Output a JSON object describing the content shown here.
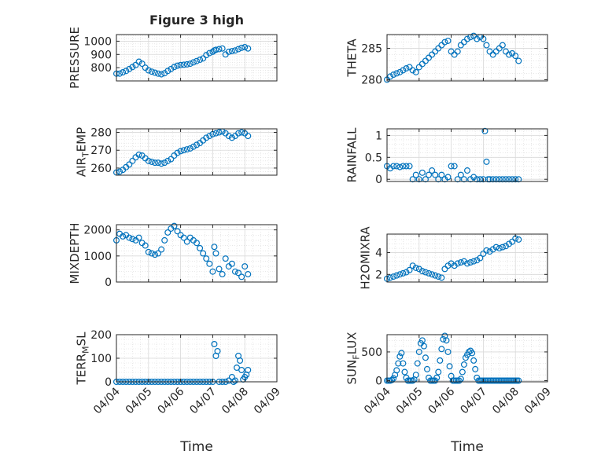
{
  "title": "Figure 3 high",
  "x_ticks": [
    "04/04",
    "04/05",
    "04/06",
    "04/07",
    "04/08",
    "04/09"
  ],
  "x_label": "Time",
  "colors": {
    "marker": "#0072bd",
    "grid": "#d9d9d9",
    "axis": "#262626"
  },
  "chart_data": [
    {
      "type": "scatter",
      "ylabel": "PRESSURE",
      "ylim": [
        700,
        1050
      ],
      "yticks": [
        "800",
        "900",
        "1000"
      ],
      "grid": true,
      "series": [
        {
          "x": [
            0,
            0.1,
            0.2,
            0.3,
            0.4,
            0.5,
            0.6,
            0.7,
            0.8,
            0.9,
            1.0,
            1.1,
            1.2,
            1.3,
            1.4,
            1.5,
            1.6,
            1.7,
            1.8,
            1.9,
            2.0,
            2.1,
            2.2,
            2.3,
            2.4,
            2.5,
            2.6,
            2.7,
            2.8,
            2.9,
            3.0,
            3.05,
            3.1,
            3.2,
            3.3,
            3.4,
            3.5,
            3.6,
            3.7,
            3.8,
            3.9,
            4.0,
            4.1
          ],
          "y": [
            755,
            755,
            765,
            775,
            790,
            805,
            820,
            845,
            830,
            800,
            780,
            770,
            762,
            755,
            750,
            758,
            775,
            790,
            805,
            815,
            820,
            822,
            825,
            830,
            840,
            850,
            860,
            870,
            895,
            910,
            920,
            930,
            935,
            940,
            945,
            900,
            920,
            925,
            930,
            940,
            950,
            955,
            945
          ]
        }
      ]
    },
    {
      "type": "scatter",
      "ylabel": "AIR_TEMP",
      "ylim": [
        256,
        282
      ],
      "yticks": [
        "260",
        "270",
        "280"
      ],
      "grid": true,
      "series": [
        {
          "x": [
            0,
            0.1,
            0.2,
            0.3,
            0.4,
            0.5,
            0.6,
            0.7,
            0.8,
            0.9,
            1.0,
            1.1,
            1.2,
            1.3,
            1.4,
            1.5,
            1.6,
            1.7,
            1.8,
            1.9,
            2.0,
            2.1,
            2.2,
            2.3,
            2.4,
            2.5,
            2.6,
            2.7,
            2.8,
            2.9,
            3.0,
            3.1,
            3.2,
            3.3,
            3.4,
            3.5,
            3.6,
            3.7,
            3.8,
            3.9,
            4.0,
            4.1
          ],
          "y": [
            257.5,
            258,
            259,
            260.5,
            262,
            264,
            266,
            267.5,
            267,
            265.5,
            264,
            263.5,
            263,
            263,
            262.5,
            263,
            264,
            265,
            267,
            268.5,
            269.5,
            270,
            270.5,
            271,
            272,
            273,
            274,
            275.5,
            277,
            278,
            279,
            279.5,
            280,
            280.5,
            279.5,
            278,
            277,
            278,
            279.5,
            280,
            279.5,
            278
          ]
        }
      ]
    },
    {
      "type": "scatter",
      "ylabel": "MIXDEPTH",
      "ylim": [
        0,
        2200
      ],
      "yticks": [
        "0",
        "1000",
        "2000"
      ],
      "grid": true,
      "series": [
        {
          "x": [
            0,
            0.1,
            0.2,
            0.3,
            0.4,
            0.5,
            0.6,
            0.7,
            0.8,
            0.9,
            1.0,
            1.1,
            1.2,
            1.3,
            1.4,
            1.5,
            1.6,
            1.7,
            1.8,
            1.9,
            2.0,
            2.1,
            2.2,
            2.3,
            2.4,
            2.5,
            2.6,
            2.7,
            2.8,
            2.9,
            3.0,
            3.05,
            3.1,
            3.2,
            3.3,
            3.4,
            3.5,
            3.6,
            3.7,
            3.8,
            3.9,
            4.0,
            4.1
          ],
          "y": [
            1600,
            1850,
            1750,
            1800,
            1700,
            1650,
            1600,
            1700,
            1500,
            1400,
            1150,
            1100,
            1050,
            1100,
            1250,
            1600,
            1900,
            2050,
            2150,
            1950,
            1800,
            1700,
            1550,
            1700,
            1600,
            1500,
            1300,
            1100,
            900,
            700,
            400,
            1350,
            1100,
            500,
            300,
            900,
            600,
            700,
            400,
            350,
            200,
            600,
            300
          ]
        }
      ]
    },
    {
      "type": "scatter",
      "ylabel": "TERR_MSL",
      "ylim": [
        0,
        200
      ],
      "yticks": [
        "0",
        "100",
        "200"
      ],
      "grid": true,
      "series": [
        {
          "x": [
            0,
            0.1,
            0.2,
            0.3,
            0.4,
            0.5,
            0.6,
            0.7,
            0.8,
            0.9,
            1.0,
            1.1,
            1.2,
            1.3,
            1.4,
            1.5,
            1.6,
            1.7,
            1.8,
            1.9,
            2.0,
            2.1,
            2.2,
            2.3,
            2.4,
            2.5,
            2.6,
            2.7,
            2.8,
            2.9,
            3.0,
            3.05,
            3.1,
            3.15,
            3.2,
            3.3,
            3.4,
            3.5,
            3.6,
            3.65,
            3.7,
            3.75,
            3.8,
            3.85,
            3.9,
            3.95,
            4.0,
            4.05,
            4.1
          ],
          "y": [
            0,
            0,
            0,
            0,
            0,
            0,
            0,
            0,
            0,
            0,
            0,
            0,
            0,
            0,
            0,
            0,
            0,
            0,
            0,
            0,
            0,
            0,
            0,
            0,
            0,
            0,
            0,
            0,
            0,
            0,
            0,
            160,
            110,
            130,
            0,
            0,
            0,
            5,
            20,
            0,
            5,
            60,
            110,
            90,
            50,
            10,
            20,
            30,
            50
          ]
        }
      ]
    },
    {
      "type": "scatter",
      "ylabel": "THETA",
      "ylim": [
        279.8,
        287.2
      ],
      "yticks": [
        "280",
        "285"
      ],
      "grid": true,
      "series": [
        {
          "x": [
            0,
            0.1,
            0.2,
            0.3,
            0.4,
            0.5,
            0.6,
            0.7,
            0.8,
            0.9,
            1.0,
            1.1,
            1.2,
            1.3,
            1.4,
            1.5,
            1.6,
            1.7,
            1.8,
            1.9,
            2.0,
            2.1,
            2.2,
            2.3,
            2.4,
            2.5,
            2.6,
            2.7,
            2.8,
            2.9,
            3.0,
            3.1,
            3.2,
            3.3,
            3.4,
            3.5,
            3.6,
            3.7,
            3.8,
            3.9,
            4.0,
            4.1
          ],
          "y": [
            280,
            280.5,
            280.8,
            281,
            281.2,
            281.5,
            281.8,
            282,
            281.5,
            281.2,
            282,
            282.5,
            283,
            283.5,
            284,
            284.5,
            285,
            285.5,
            286,
            286.2,
            284.5,
            284,
            284.5,
            285.5,
            286,
            286.5,
            286.8,
            287,
            286.5,
            286.8,
            286.5,
            285.5,
            284.5,
            284,
            284.5,
            285,
            285.5,
            284.5,
            284,
            284.2,
            283.8,
            283
          ]
        }
      ]
    },
    {
      "type": "scatter",
      "ylabel": "RAINFALL",
      "ylim": [
        -0.05,
        1.15
      ],
      "yticks": [
        "0",
        "0.5",
        "1"
      ],
      "grid": true,
      "series": [
        {
          "x": [
            0,
            0.1,
            0.2,
            0.3,
            0.4,
            0.5,
            0.6,
            0.7,
            0.8,
            0.9,
            1.0,
            1.1,
            1.2,
            1.3,
            1.4,
            1.5,
            1.6,
            1.7,
            1.8,
            1.9,
            2.0,
            2.1,
            2.2,
            2.3,
            2.4,
            2.5,
            2.6,
            2.7,
            2.8,
            2.9,
            3.0,
            3.05,
            3.1,
            3.15,
            3.2,
            3.3,
            3.4,
            3.5,
            3.6,
            3.7,
            3.8,
            3.9,
            4.0,
            4.1
          ],
          "y": [
            0.3,
            0.25,
            0.3,
            0.3,
            0.28,
            0.3,
            0.3,
            0.3,
            0.0,
            0.1,
            0.0,
            0.15,
            0.0,
            0.1,
            0.2,
            0.1,
            0.0,
            0.1,
            0.0,
            0.05,
            0.3,
            0.3,
            0.0,
            0.1,
            0.0,
            0.2,
            0.0,
            0.05,
            0.0,
            0.0,
            0.0,
            1.1,
            0.4,
            0.0,
            0.0,
            0.0,
            0.0,
            0.0,
            0.0,
            0.0,
            0.0,
            0.0,
            0.0,
            0.0
          ]
        }
      ]
    },
    {
      "type": "scatter",
      "ylabel": "H2OMIXRA",
      "ylim": [
        1.3,
        5.7
      ],
      "yticks": [
        "2",
        "4"
      ],
      "grid": true,
      "series": [
        {
          "x": [
            0,
            0.1,
            0.2,
            0.3,
            0.4,
            0.5,
            0.6,
            0.7,
            0.8,
            0.9,
            1.0,
            1.1,
            1.2,
            1.3,
            1.4,
            1.5,
            1.6,
            1.7,
            1.8,
            1.9,
            2.0,
            2.1,
            2.2,
            2.3,
            2.4,
            2.5,
            2.6,
            2.7,
            2.8,
            2.9,
            3.0,
            3.1,
            3.2,
            3.3,
            3.4,
            3.5,
            3.6,
            3.7,
            3.8,
            3.9,
            4.0,
            4.1
          ],
          "y": [
            1.6,
            1.7,
            1.8,
            1.9,
            2.0,
            2.1,
            2.2,
            2.4,
            2.8,
            2.6,
            2.5,
            2.3,
            2.2,
            2.1,
            2.0,
            1.9,
            1.8,
            1.7,
            2.5,
            2.8,
            3.0,
            2.8,
            3.0,
            3.1,
            3.2,
            3.0,
            3.1,
            3.2,
            3.3,
            3.5,
            3.9,
            4.2,
            4.1,
            4.3,
            4.5,
            4.4,
            4.5,
            4.6,
            4.8,
            5.0,
            5.3,
            5.2
          ]
        }
      ]
    },
    {
      "type": "scatter",
      "ylabel": "SUN_FLUX",
      "ylim": [
        -20,
        800
      ],
      "yticks": [
        "0",
        "500"
      ],
      "grid": true,
      "series": [
        {
          "x": [
            0,
            0.05,
            0.1,
            0.15,
            0.2,
            0.25,
            0.3,
            0.35,
            0.4,
            0.45,
            0.5,
            0.55,
            0.6,
            0.65,
            0.7,
            0.75,
            0.8,
            0.85,
            0.9,
            0.95,
            1.0,
            1.05,
            1.1,
            1.15,
            1.2,
            1.25,
            1.3,
            1.35,
            1.4,
            1.45,
            1.5,
            1.55,
            1.6,
            1.65,
            1.7,
            1.75,
            1.8,
            1.85,
            1.9,
            1.95,
            2.0,
            2.05,
            2.1,
            2.15,
            2.2,
            2.25,
            2.3,
            2.35,
            2.4,
            2.45,
            2.5,
            2.55,
            2.6,
            2.65,
            2.7,
            2.75,
            2.8,
            2.85,
            2.9,
            2.95,
            3.0,
            3.05,
            3.1,
            3.15,
            3.2,
            3.25,
            3.3,
            3.35,
            3.4,
            3.45,
            3.5,
            3.55,
            3.6,
            3.65,
            3.7,
            3.75,
            3.8,
            3.85,
            3.9,
            3.95,
            4.0,
            4.05,
            4.1
          ],
          "y": [
            0,
            0,
            0,
            10,
            40,
            100,
            180,
            300,
            420,
            480,
            300,
            150,
            50,
            0,
            0,
            0,
            0,
            20,
            100,
            300,
            500,
            650,
            700,
            600,
            400,
            200,
            50,
            0,
            0,
            0,
            0,
            50,
            150,
            350,
            550,
            720,
            780,
            700,
            500,
            250,
            80,
            0,
            0,
            0,
            0,
            0,
            30,
            150,
            280,
            400,
            450,
            500,
            520,
            480,
            350,
            200,
            50,
            0,
            0,
            0,
            0,
            0,
            0,
            0,
            0,
            0,
            0,
            0,
            0,
            0,
            0,
            0,
            0,
            0,
            0,
            0,
            0,
            0,
            0,
            0,
            0,
            0,
            0
          ]
        }
      ]
    }
  ]
}
